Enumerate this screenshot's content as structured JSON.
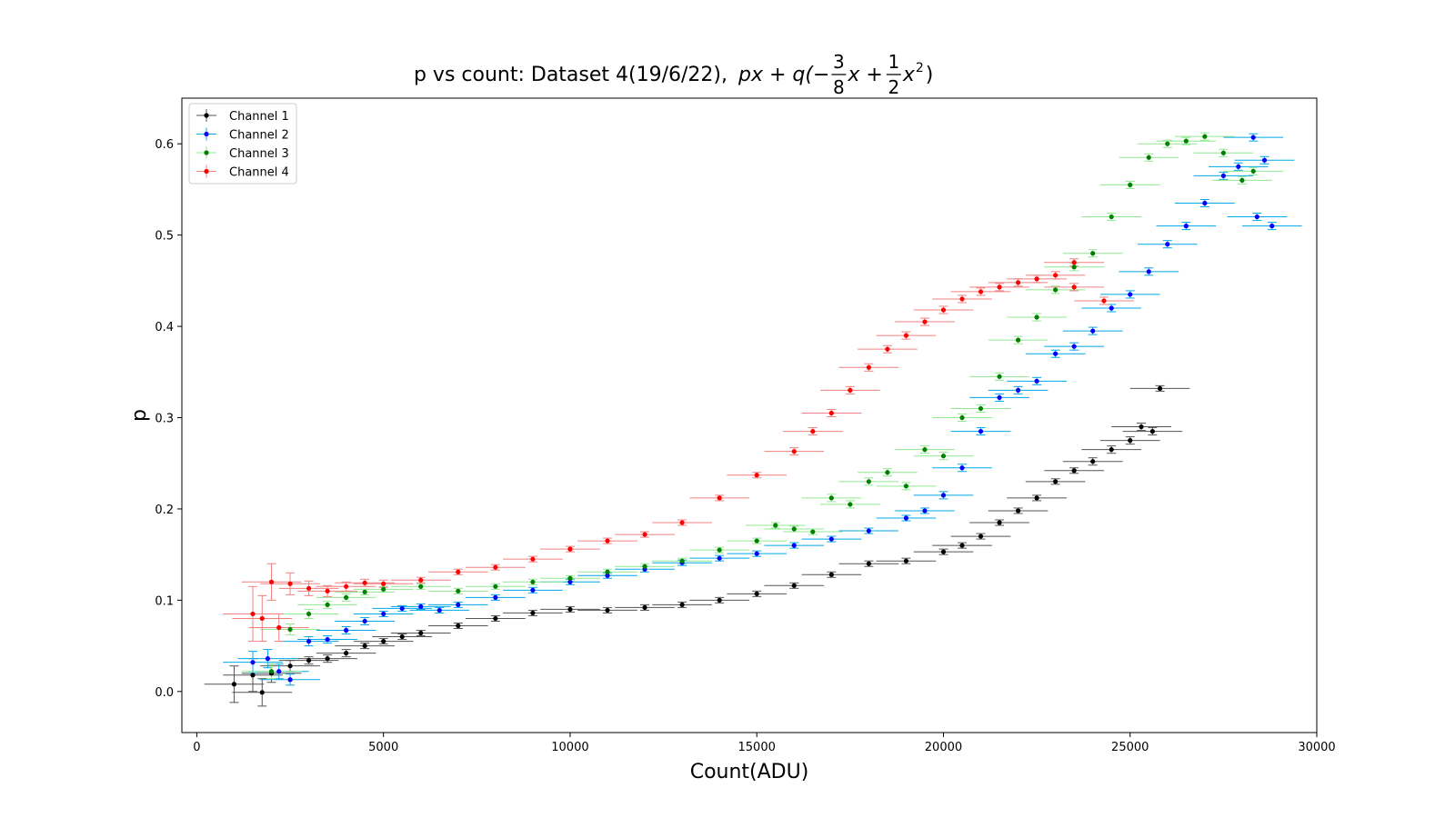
{
  "chart_data": {
    "type": "scatter",
    "title": "p vs count: Dataset 4(19/6/22),",
    "title_math": {
      "lead": "px + q(−",
      "frac1_num": "3",
      "frac1_den": "8",
      "mid": "x +",
      "frac2_num": "1",
      "frac2_den": "2",
      "tail_x": "x",
      "tail_exp": "2",
      "close": ")"
    },
    "xlabel": "Count(ADU)",
    "ylabel": "p",
    "xlim": [
      -400,
      30000
    ],
    "ylim": [
      -0.045,
      0.65
    ],
    "xticks": [
      0,
      5000,
      10000,
      15000,
      20000,
      25000,
      30000
    ],
    "xtick_labels": [
      "0",
      "5000",
      "10000",
      "15000",
      "20000",
      "25000",
      "30000"
    ],
    "yticks": [
      0.0,
      0.1,
      0.2,
      0.3,
      0.4,
      0.5,
      0.6
    ],
    "ytick_labels": [
      "0.0",
      "0.1",
      "0.2",
      "0.3",
      "0.4",
      "0.5",
      "0.6"
    ],
    "grid": false,
    "legend_position": "top-left",
    "series": [
      {
        "name": "Channel 1",
        "color": "#000000",
        "err_color": "#555555",
        "xerr": 800,
        "points": [
          [
            1000,
            0.008,
            0.02
          ],
          [
            1500,
            0.018,
            0.018
          ],
          [
            1750,
            -0.001,
            0.015
          ],
          [
            2000,
            0.02,
            0.01
          ],
          [
            2500,
            0.028,
            0.006
          ],
          [
            3000,
            0.034,
            0.004
          ],
          [
            3500,
            0.036,
            0.004
          ],
          [
            4000,
            0.042,
            0.004
          ],
          [
            4500,
            0.05,
            0.003
          ],
          [
            5000,
            0.055,
            0.003
          ],
          [
            5500,
            0.06,
            0.003
          ],
          [
            6000,
            0.064,
            0.003
          ],
          [
            7000,
            0.072,
            0.003
          ],
          [
            8000,
            0.08,
            0.003
          ],
          [
            9000,
            0.086,
            0.003
          ],
          [
            10000,
            0.09,
            0.003
          ],
          [
            11000,
            0.089,
            0.003
          ],
          [
            12000,
            0.092,
            0.003
          ],
          [
            13000,
            0.095,
            0.003
          ],
          [
            14000,
            0.1,
            0.003
          ],
          [
            15000,
            0.107,
            0.003
          ],
          [
            16000,
            0.116,
            0.003
          ],
          [
            17000,
            0.128,
            0.003
          ],
          [
            18000,
            0.14,
            0.003
          ],
          [
            19000,
            0.143,
            0.003
          ],
          [
            20000,
            0.153,
            0.003
          ],
          [
            20500,
            0.16,
            0.003
          ],
          [
            21000,
            0.17,
            0.003
          ],
          [
            21500,
            0.185,
            0.003
          ],
          [
            22000,
            0.198,
            0.003
          ],
          [
            22500,
            0.212,
            0.003
          ],
          [
            23000,
            0.23,
            0.003
          ],
          [
            23500,
            0.242,
            0.003
          ],
          [
            24000,
            0.252,
            0.004
          ],
          [
            24500,
            0.265,
            0.004
          ],
          [
            25000,
            0.275,
            0.004
          ],
          [
            25300,
            0.29,
            0.004
          ],
          [
            25600,
            0.285,
            0.004
          ],
          [
            25800,
            0.332,
            0.003
          ]
        ]
      },
      {
        "name": "Channel 2",
        "color": "#0000ff",
        "err_color": "#00a8e8",
        "xerr": 800,
        "points": [
          [
            1500,
            0.032,
            0.012
          ],
          [
            1900,
            0.036,
            0.01
          ],
          [
            2200,
            0.022,
            0.008
          ],
          [
            2500,
            0.013,
            0.006
          ],
          [
            3000,
            0.055,
            0.005
          ],
          [
            3500,
            0.057,
            0.004
          ],
          [
            4000,
            0.067,
            0.004
          ],
          [
            4500,
            0.077,
            0.004
          ],
          [
            5000,
            0.085,
            0.003
          ],
          [
            5500,
            0.091,
            0.003
          ],
          [
            6000,
            0.093,
            0.003
          ],
          [
            6500,
            0.089,
            0.003
          ],
          [
            7000,
            0.095,
            0.003
          ],
          [
            8000,
            0.103,
            0.003
          ],
          [
            9000,
            0.111,
            0.003
          ],
          [
            10000,
            0.12,
            0.003
          ],
          [
            11000,
            0.127,
            0.003
          ],
          [
            12000,
            0.134,
            0.003
          ],
          [
            13000,
            0.141,
            0.003
          ],
          [
            14000,
            0.146,
            0.003
          ],
          [
            15000,
            0.151,
            0.003
          ],
          [
            16000,
            0.16,
            0.003
          ],
          [
            17000,
            0.167,
            0.003
          ],
          [
            18000,
            0.176,
            0.003
          ],
          [
            19000,
            0.19,
            0.003
          ],
          [
            19500,
            0.198,
            0.003
          ],
          [
            20000,
            0.215,
            0.004
          ],
          [
            20500,
            0.245,
            0.004
          ],
          [
            21000,
            0.285,
            0.004
          ],
          [
            21500,
            0.322,
            0.004
          ],
          [
            22000,
            0.33,
            0.004
          ],
          [
            22500,
            0.34,
            0.004
          ],
          [
            23000,
            0.37,
            0.004
          ],
          [
            23500,
            0.378,
            0.004
          ],
          [
            24000,
            0.395,
            0.004
          ],
          [
            24500,
            0.42,
            0.004
          ],
          [
            25000,
            0.435,
            0.004
          ],
          [
            25500,
            0.46,
            0.004
          ],
          [
            26000,
            0.49,
            0.004
          ],
          [
            26500,
            0.51,
            0.004
          ],
          [
            27000,
            0.535,
            0.004
          ],
          [
            27500,
            0.565,
            0.004
          ],
          [
            27900,
            0.575,
            0.004
          ],
          [
            28300,
            0.607,
            0.004
          ],
          [
            28400,
            0.52,
            0.004
          ],
          [
            28600,
            0.582,
            0.004
          ],
          [
            28800,
            0.51,
            0.004
          ]
        ]
      },
      {
        "name": "Channel 3",
        "color": "#008000",
        "err_color": "#90e890",
        "xerr": 800,
        "points": [
          [
            2000,
            0.022,
            0.008
          ],
          [
            2500,
            0.068,
            0.006
          ],
          [
            3000,
            0.085,
            0.005
          ],
          [
            3500,
            0.095,
            0.004
          ],
          [
            4000,
            0.103,
            0.004
          ],
          [
            4500,
            0.109,
            0.003
          ],
          [
            5000,
            0.112,
            0.003
          ],
          [
            6000,
            0.115,
            0.003
          ],
          [
            7000,
            0.11,
            0.003
          ],
          [
            8000,
            0.115,
            0.003
          ],
          [
            9000,
            0.12,
            0.003
          ],
          [
            10000,
            0.124,
            0.003
          ],
          [
            11000,
            0.131,
            0.003
          ],
          [
            12000,
            0.137,
            0.003
          ],
          [
            13000,
            0.143,
            0.003
          ],
          [
            14000,
            0.155,
            0.003
          ],
          [
            15000,
            0.165,
            0.003
          ],
          [
            15500,
            0.182,
            0.003
          ],
          [
            16000,
            0.178,
            0.003
          ],
          [
            16500,
            0.175,
            0.003
          ],
          [
            17000,
            0.212,
            0.004
          ],
          [
            17500,
            0.205,
            0.004
          ],
          [
            18000,
            0.23,
            0.004
          ],
          [
            18500,
            0.24,
            0.004
          ],
          [
            19000,
            0.225,
            0.004
          ],
          [
            19500,
            0.265,
            0.004
          ],
          [
            20000,
            0.258,
            0.004
          ],
          [
            20500,
            0.3,
            0.004
          ],
          [
            21000,
            0.31,
            0.004
          ],
          [
            21500,
            0.345,
            0.004
          ],
          [
            22000,
            0.385,
            0.004
          ],
          [
            22500,
            0.41,
            0.004
          ],
          [
            23000,
            0.44,
            0.004
          ],
          [
            23500,
            0.465,
            0.004
          ],
          [
            24000,
            0.48,
            0.004
          ],
          [
            24500,
            0.52,
            0.004
          ],
          [
            25000,
            0.555,
            0.004
          ],
          [
            25500,
            0.585,
            0.004
          ],
          [
            26000,
            0.6,
            0.004
          ],
          [
            26500,
            0.603,
            0.004
          ],
          [
            27000,
            0.608,
            0.004
          ],
          [
            27500,
            0.59,
            0.004
          ],
          [
            28000,
            0.56,
            0.004
          ],
          [
            28300,
            0.57,
            0.004
          ]
        ]
      },
      {
        "name": "Channel 4",
        "color": "#ff0000",
        "err_color": "#f08080",
        "xerr": 800,
        "points": [
          [
            1500,
            0.085,
            0.03
          ],
          [
            1750,
            0.08,
            0.025
          ],
          [
            2000,
            0.12,
            0.02
          ],
          [
            2200,
            0.07,
            0.015
          ],
          [
            2500,
            0.118,
            0.012
          ],
          [
            3000,
            0.113,
            0.008
          ],
          [
            3500,
            0.11,
            0.006
          ],
          [
            4000,
            0.115,
            0.005
          ],
          [
            4500,
            0.119,
            0.004
          ],
          [
            5000,
            0.118,
            0.004
          ],
          [
            6000,
            0.122,
            0.003
          ],
          [
            7000,
            0.131,
            0.003
          ],
          [
            8000,
            0.136,
            0.003
          ],
          [
            9000,
            0.145,
            0.003
          ],
          [
            10000,
            0.156,
            0.003
          ],
          [
            11000,
            0.165,
            0.003
          ],
          [
            12000,
            0.172,
            0.003
          ],
          [
            13000,
            0.185,
            0.003
          ],
          [
            14000,
            0.212,
            0.003
          ],
          [
            15000,
            0.237,
            0.003
          ],
          [
            16000,
            0.263,
            0.004
          ],
          [
            16500,
            0.285,
            0.004
          ],
          [
            17000,
            0.305,
            0.004
          ],
          [
            17500,
            0.33,
            0.004
          ],
          [
            18000,
            0.355,
            0.004
          ],
          [
            18500,
            0.375,
            0.004
          ],
          [
            19000,
            0.39,
            0.004
          ],
          [
            19500,
            0.405,
            0.004
          ],
          [
            20000,
            0.418,
            0.004
          ],
          [
            20500,
            0.43,
            0.004
          ],
          [
            21000,
            0.438,
            0.004
          ],
          [
            21500,
            0.443,
            0.004
          ],
          [
            22000,
            0.448,
            0.004
          ],
          [
            22500,
            0.452,
            0.004
          ],
          [
            23000,
            0.456,
            0.004
          ],
          [
            23500,
            0.47,
            0.004
          ],
          [
            23500,
            0.443,
            0.004
          ],
          [
            24300,
            0.428,
            0.004
          ]
        ]
      }
    ]
  }
}
